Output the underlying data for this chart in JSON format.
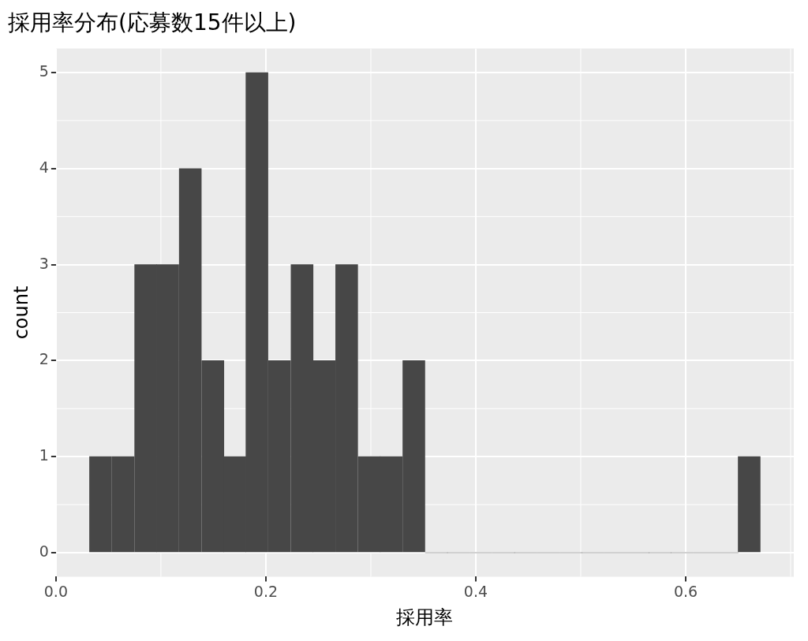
{
  "chart_data": {
    "type": "histogram",
    "title": "採用率分布(応募数15件以上)",
    "xlabel": "採用率",
    "ylabel": "count",
    "bins": [
      0.032,
      0.053,
      0.075,
      0.096,
      0.117,
      0.139,
      0.16,
      0.181,
      0.202,
      0.224,
      0.245,
      0.266,
      0.288,
      0.309,
      0.33,
      0.352,
      0.373,
      0.394,
      0.416,
      0.437,
      0.458,
      0.48,
      0.501,
      0.522,
      0.544,
      0.565,
      0.586,
      0.607,
      0.629,
      0.65,
      0.671
    ],
    "values": [
      1,
      1,
      3,
      3,
      4,
      2,
      1,
      5,
      2,
      3,
      2,
      3,
      1,
      1,
      2,
      0,
      0,
      0,
      0,
      0,
      0,
      0,
      0,
      0,
      0,
      0,
      0,
      0,
      0,
      1
    ],
    "color": "#474747",
    "xlim": [
      0,
      0.703
    ],
    "ylim": [
      -0.25,
      5.25
    ],
    "xticks": [
      {
        "value": 0,
        "label": "0.0"
      },
      {
        "value": 0.2,
        "label": "0.2"
      },
      {
        "value": 0.4,
        "label": "0.4"
      },
      {
        "value": 0.6,
        "label": "0.6"
      }
    ],
    "yticks": [
      0,
      1,
      2,
      3,
      4,
      5
    ],
    "grid": true
  }
}
